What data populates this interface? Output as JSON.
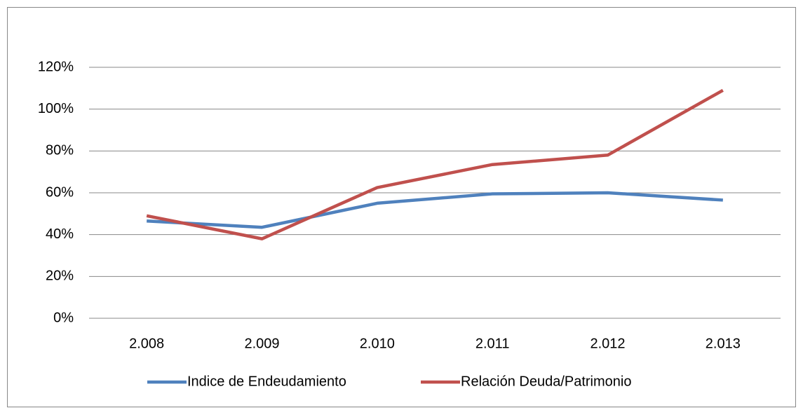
{
  "chart_data": {
    "type": "line",
    "categories": [
      "2.008",
      "2.009",
      "2.010",
      "2.011",
      "2.012",
      "2.013"
    ],
    "series": [
      {
        "name": "Indice de Endeudamiento",
        "color": "#4f81bd",
        "values": [
          46.5,
          43.5,
          55,
          59.5,
          60,
          56.5
        ]
      },
      {
        "name": "Relación Deuda/Patrimonio",
        "color": "#c0504d",
        "values": [
          49,
          38,
          62.5,
          73.5,
          78,
          109
        ]
      }
    ],
    "ylim": [
      0,
      120
    ],
    "yticks": [
      {
        "value": 0,
        "label": "0%"
      },
      {
        "value": 20,
        "label": "20%"
      },
      {
        "value": 40,
        "label": "40%"
      },
      {
        "value": 60,
        "label": "60%"
      },
      {
        "value": 80,
        "label": "80%"
      },
      {
        "value": 100,
        "label": "100%"
      },
      {
        "value": 120,
        "label": "120%"
      }
    ],
    "grid": true,
    "legend": "bottom"
  }
}
